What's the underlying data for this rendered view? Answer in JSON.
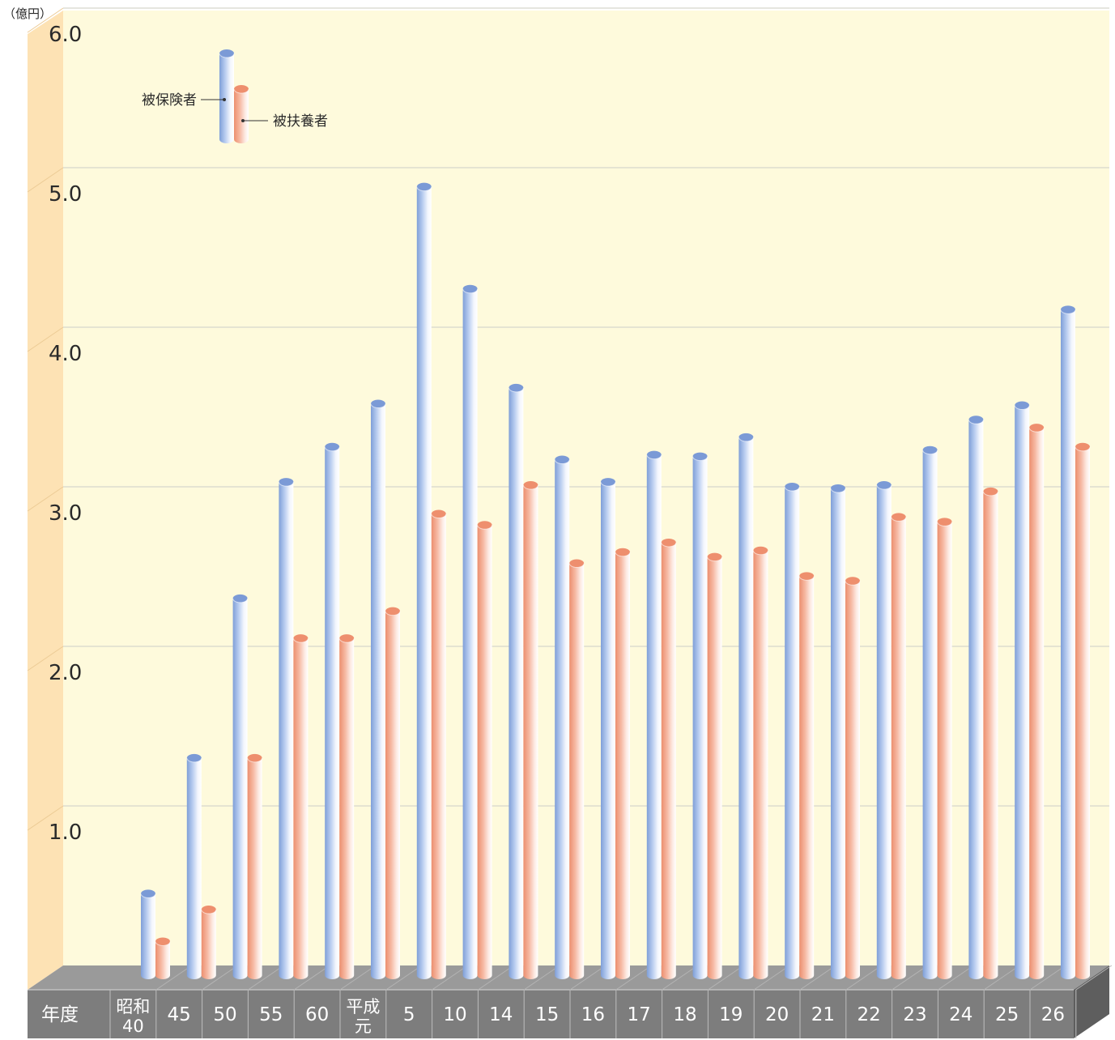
{
  "chart_data": {
    "type": "bar",
    "unit_label": "（億円）",
    "xlabel": "年度",
    "ylim": [
      0,
      6
    ],
    "yticks": [
      "1.0",
      "2.0",
      "3.0",
      "4.0",
      "5.0",
      "6.0"
    ],
    "categories": [
      "昭和\n40",
      "45",
      "50",
      "55",
      "60",
      "平成\n元",
      "5",
      "10",
      "14",
      "15",
      "16",
      "17",
      "18",
      "19",
      "20",
      "21",
      "22",
      "23",
      "24",
      "25",
      "26"
    ],
    "series": [
      {
        "name": "被保険者",
        "color": "#8fb0e3",
        "values": [
          0.45,
          1.3,
          2.3,
          3.03,
          3.25,
          3.52,
          4.88,
          4.24,
          3.62,
          3.17,
          3.03,
          3.2,
          3.19,
          3.31,
          3.0,
          2.99,
          3.01,
          3.23,
          3.42,
          3.51,
          4.11
        ]
      },
      {
        "name": "被扶養者",
        "color": "#f0a48a",
        "values": [
          0.15,
          0.35,
          1.3,
          2.05,
          2.05,
          2.22,
          2.83,
          2.76,
          3.01,
          2.52,
          2.59,
          2.65,
          2.56,
          2.6,
          2.44,
          2.41,
          2.81,
          2.78,
          2.97,
          3.37,
          3.25
        ]
      }
    ],
    "grid": true,
    "legend_position": "top-left"
  }
}
